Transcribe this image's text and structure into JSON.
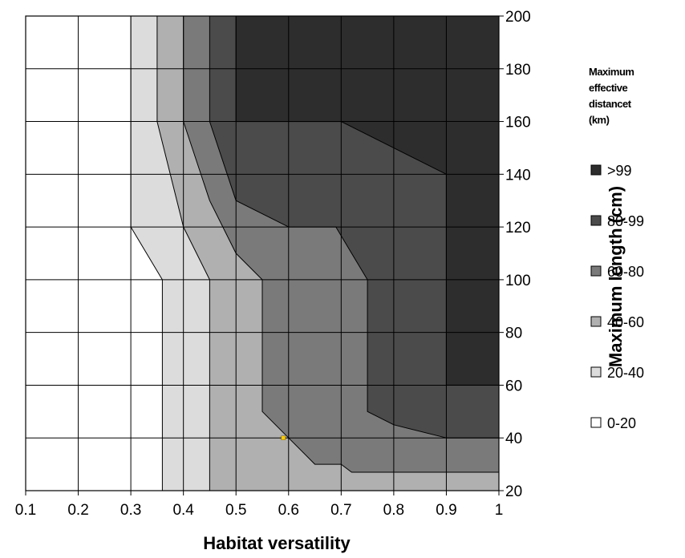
{
  "chart_data": {
    "type": "heatmap",
    "xlabel": "Habitat versatility",
    "ylabel": "Maximum length (cm)",
    "xlim": [
      0.1,
      1.0
    ],
    "ylim": [
      20,
      200
    ],
    "x_ticks": [
      "0.1",
      "0.2",
      "0.3",
      "0.4",
      "0.5",
      "0.6",
      "0.7",
      "0.8",
      "0.9",
      "1"
    ],
    "y_ticks": [
      "20",
      "40",
      "60",
      "80",
      "100",
      "120",
      "140",
      "160",
      "180",
      "200"
    ],
    "grid": true,
    "legend_position": "right",
    "legend_title": [
      "Maximum",
      "effective",
      "distancet",
      "(km)"
    ],
    "legend": [
      {
        "label": ">99",
        "color": "#2d2d2d"
      },
      {
        "label": "80-99",
        "color": "#4b4b4b"
      },
      {
        "label": "60-80",
        "color": "#7a7a7a"
      },
      {
        "label": "40-60",
        "color": "#b0b0b0"
      },
      {
        "label": "20-40",
        "color": "#dcdcdc"
      },
      {
        "label": "0-20",
        "color": "#ffffff"
      }
    ],
    "regions": [
      {
        "band": "20-40",
        "color": "#dcdcdc",
        "boundary": [
          [
            0.3,
            200
          ],
          [
            0.3,
            120
          ],
          [
            0.36,
            100
          ],
          [
            0.36,
            20
          ],
          [
            1.0,
            20
          ],
          [
            1.0,
            200
          ]
        ]
      },
      {
        "band": "40-60",
        "color": "#b0b0b0",
        "boundary": [
          [
            0.35,
            200
          ],
          [
            0.35,
            160
          ],
          [
            0.4,
            120
          ],
          [
            0.45,
            100
          ],
          [
            0.45,
            20
          ],
          [
            1.0,
            20
          ],
          [
            1.0,
            200
          ]
        ]
      },
      {
        "band": "60-80",
        "color": "#7a7a7a",
        "boundary": [
          [
            0.4,
            200
          ],
          [
            0.4,
            160
          ],
          [
            0.45,
            130
          ],
          [
            0.5,
            110
          ],
          [
            0.55,
            100
          ],
          [
            0.55,
            50
          ],
          [
            0.6,
            40
          ],
          [
            0.65,
            30
          ],
          [
            0.7,
            30
          ],
          [
            0.72,
            27
          ],
          [
            1.0,
            27
          ],
          [
            1.0,
            200
          ]
        ]
      },
      {
        "band": "80-99",
        "color": "#4b4b4b",
        "boundary": [
          [
            0.45,
            200
          ],
          [
            0.45,
            160
          ],
          [
            0.5,
            130
          ],
          [
            0.6,
            120
          ],
          [
            0.69,
            120
          ],
          [
            0.72,
            110
          ],
          [
            0.75,
            100
          ],
          [
            0.75,
            50
          ],
          [
            0.8,
            45
          ],
          [
            0.9,
            40
          ],
          [
            1.0,
            40
          ],
          [
            1.0,
            200
          ]
        ]
      },
      {
        "band": ">99",
        "color": "#2d2d2d",
        "boundary": [
          [
            0.5,
            200
          ],
          [
            0.5,
            160
          ],
          [
            0.7,
            160
          ],
          [
            0.9,
            140
          ],
          [
            0.9,
            60
          ],
          [
            1.0,
            60
          ],
          [
            1.0,
            200
          ]
        ]
      }
    ],
    "marker": {
      "x": 0.59,
      "y": 40,
      "color": "#ffcc00"
    }
  }
}
